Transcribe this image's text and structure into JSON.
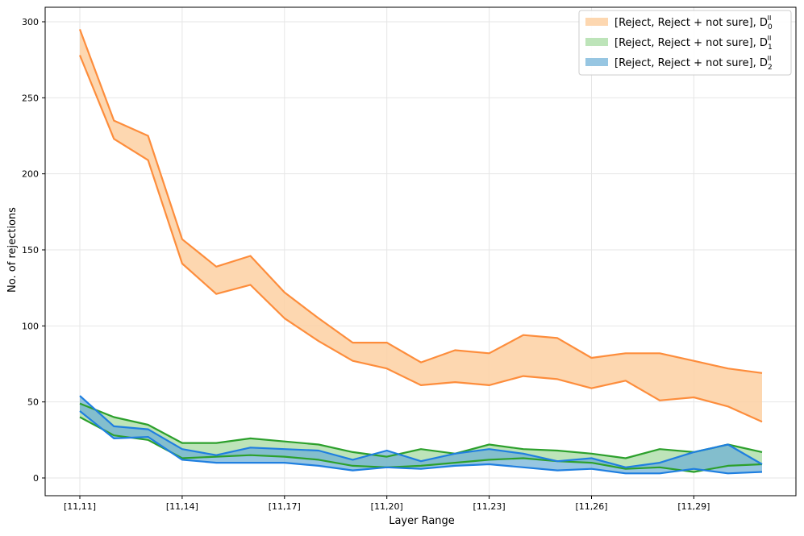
{
  "chart_data": {
    "type": "area",
    "xlabel": "Layer Range",
    "ylabel": "No. of rejections",
    "ylim": [
      -12,
      300
    ],
    "yticks": [
      0,
      50,
      100,
      150,
      200,
      250,
      300
    ],
    "x_index": [
      0,
      1,
      2,
      3,
      4,
      5,
      6,
      7,
      8,
      9,
      10,
      11,
      12,
      13,
      14,
      15,
      16,
      17,
      18,
      19,
      20
    ],
    "xticks": [
      {
        "index": 0,
        "label": "[11,11]"
      },
      {
        "index": 3,
        "label": "[11,14]"
      },
      {
        "index": 6,
        "label": "[11,17]"
      },
      {
        "index": 9,
        "label": "[11,20]"
      },
      {
        "index": 12,
        "label": "[11,23]"
      },
      {
        "index": 15,
        "label": "[11,26]"
      },
      {
        "index": 18,
        "label": "[11,29]"
      }
    ],
    "grid": true,
    "legend_position": "top-right",
    "series": [
      {
        "name": "[Reject, Reject + not sure], D",
        "sub": "0",
        "sup": "II",
        "line_color": "#fd8d3c",
        "fill_color": "#fdd0a2",
        "reject": [
          278,
          223,
          209,
          141,
          121,
          127,
          105,
          90,
          77,
          72,
          61,
          63,
          61,
          67,
          65,
          59,
          64,
          51,
          53,
          47,
          37
        ],
        "reject_not_sure": [
          295,
          235,
          225,
          157,
          139,
          146,
          122,
          105,
          89,
          89,
          76,
          84,
          82,
          94,
          92,
          79,
          82,
          82,
          77,
          72,
          69
        ]
      },
      {
        "name": "[Reject, Reject + not sure], D",
        "sub": "1",
        "sup": "II",
        "line_color": "#2ca02c",
        "fill_color": "#a1d99b",
        "reject": [
          40,
          28,
          25,
          13,
          14,
          15,
          14,
          12,
          8,
          7,
          8,
          10,
          12,
          13,
          11,
          10,
          6,
          7,
          4,
          8,
          9
        ],
        "reject_not_sure": [
          49,
          40,
          35,
          23,
          23,
          26,
          24,
          22,
          17,
          14,
          19,
          16,
          22,
          19,
          18,
          16,
          13,
          19,
          17,
          22,
          17
        ]
      },
      {
        "name": "[Reject, Reject + not sure], D",
        "sub": "2",
        "sup": "II",
        "line_color": "#1f7fe0",
        "fill_color": "#6baed6",
        "reject": [
          44,
          26,
          27,
          12,
          10,
          10,
          10,
          8,
          5,
          7,
          6,
          8,
          9,
          7,
          5,
          6,
          3,
          3,
          6,
          3,
          4
        ],
        "reject_not_sure": [
          54,
          34,
          32,
          19,
          15,
          20,
          19,
          18,
          12,
          18,
          11,
          16,
          19,
          16,
          11,
          13,
          7,
          10,
          17,
          22,
          9
        ]
      }
    ]
  }
}
